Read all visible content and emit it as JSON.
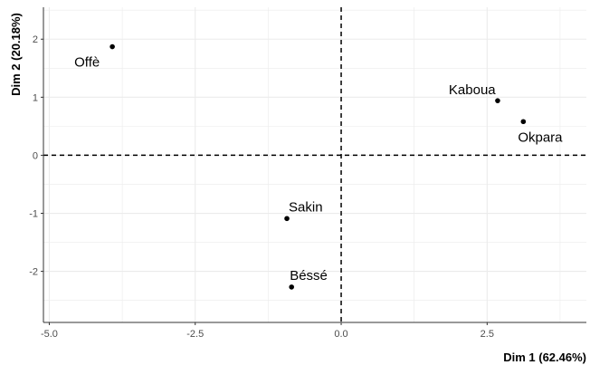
{
  "chart_data": {
    "type": "scatter",
    "xlabel": "Dim 1 (62.46%)",
    "ylabel": "Dim 2 (20.18%)",
    "xlim": [
      -5.1,
      4.2
    ],
    "ylim": [
      -2.88,
      2.55
    ],
    "x_ticks": [
      -5.0,
      -2.5,
      0.0,
      2.5
    ],
    "x_tick_labels": [
      "-5.0",
      "-2.5",
      "0.0",
      "2.5"
    ],
    "y_ticks": [
      2,
      1,
      0,
      -1,
      -2
    ],
    "y_tick_labels": [
      "2",
      "1",
      "0",
      "-1",
      "-2"
    ],
    "grid": true,
    "reference_lines": {
      "x": 0,
      "y": 0,
      "style": "dashed"
    },
    "points": [
      {
        "label": "Offè",
        "x": -3.92,
        "y": 1.87
      },
      {
        "label": "Kaboua",
        "x": 2.68,
        "y": 0.94
      },
      {
        "label": "Okpara",
        "x": 3.12,
        "y": 0.58
      },
      {
        "label": "Sakin",
        "x": -0.93,
        "y": -1.09
      },
      {
        "label": "Béssé",
        "x": -0.85,
        "y": -2.27
      }
    ],
    "colors": {
      "point": "#000000",
      "grid": "#ebebeb",
      "reference": "#000000"
    }
  }
}
